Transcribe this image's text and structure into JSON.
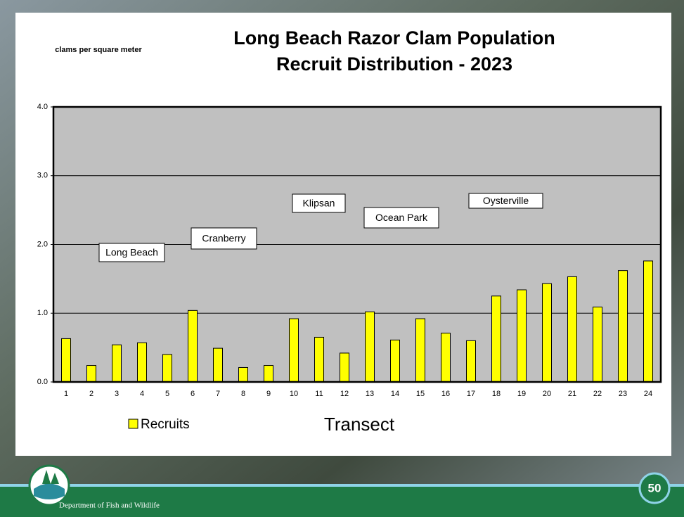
{
  "chart_data": {
    "type": "bar",
    "title": "Long Beach Razor Clam Population",
    "subtitle": "Recruit Distribution - 2023",
    "y_label": "clams per square meter",
    "x_label": "Transect",
    "categories": [
      "1",
      "2",
      "3",
      "4",
      "5",
      "6",
      "7",
      "8",
      "9",
      "10",
      "11",
      "12",
      "13",
      "14",
      "15",
      "16",
      "17",
      "18",
      "19",
      "20",
      "21",
      "22",
      "23",
      "24"
    ],
    "series": [
      {
        "name": "Recruits",
        "color": "#ffff00",
        "values": [
          0.63,
          0.24,
          0.54,
          0.57,
          0.4,
          1.04,
          0.49,
          0.21,
          0.24,
          0.92,
          0.65,
          0.42,
          1.02,
          0.61,
          0.92,
          0.71,
          0.6,
          1.25,
          1.34,
          1.43,
          1.53,
          1.09,
          1.62,
          1.76
        ]
      }
    ],
    "ylim": [
      0,
      4
    ],
    "yticks": [
      {
        "value": 0,
        "label": "0.0"
      },
      {
        "value": 1,
        "label": "1.0"
      },
      {
        "value": 2,
        "label": "2.0"
      },
      {
        "value": 3,
        "label": "3.0"
      },
      {
        "value": 4,
        "label": "4.0"
      }
    ],
    "grid": true,
    "legend": "bottom-left",
    "annotations": [
      {
        "text": "Long Beach"
      },
      {
        "text": "Cranberry"
      },
      {
        "text": "Klipsan"
      },
      {
        "text": "Ocean Park"
      },
      {
        "text": "Oysterville"
      }
    ]
  },
  "footer": {
    "department": "Department of Fish and Wildlife",
    "page_number": "50"
  }
}
